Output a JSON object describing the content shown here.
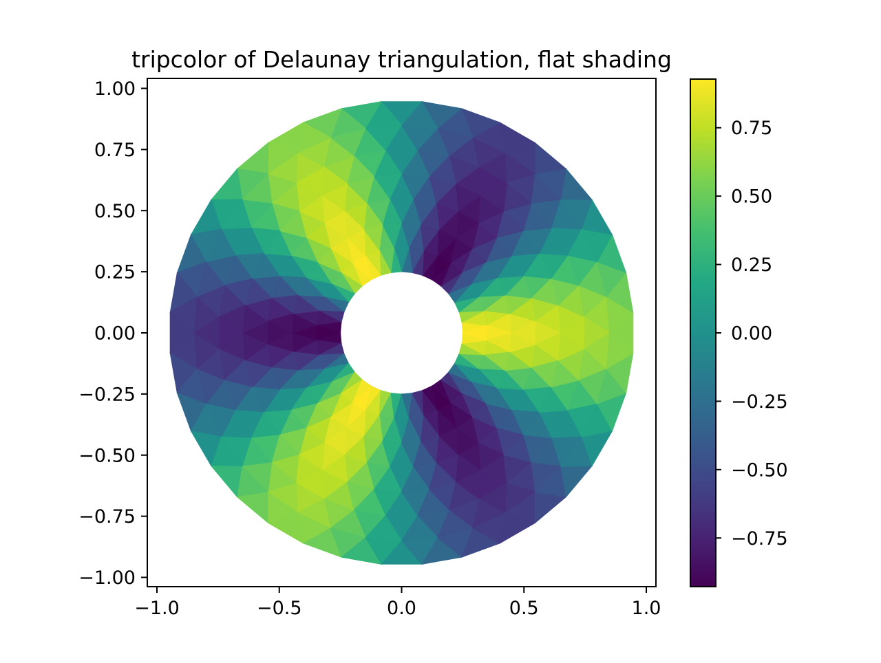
{
  "chart_data": {
    "type": "tripcolor",
    "title": "tripcolor of Delaunay triangulation, flat shading",
    "shading": "flat",
    "grid": false,
    "x_axis": {
      "tick_values": [
        -1.0,
        -0.5,
        0.0,
        0.5,
        1.0
      ],
      "tick_labels": [
        "−1.0",
        "−0.5",
        "0.0",
        "0.5",
        "1.0"
      ],
      "lim": [
        -1.04,
        1.04
      ]
    },
    "y_axis": {
      "tick_values": [
        1.0,
        0.75,
        0.5,
        0.25,
        0.0,
        -0.25,
        -0.5,
        -0.75,
        -1.0
      ],
      "tick_labels": [
        "1.00",
        "0.75",
        "0.50",
        "0.25",
        "0.00",
        "−0.25",
        "−0.50",
        "−0.75",
        "−1.00"
      ],
      "lim": [
        -1.04,
        1.04
      ]
    },
    "colorbar": {
      "position": "right",
      "colormap": "viridis",
      "tick_values": [
        0.75,
        0.5,
        0.25,
        0.0,
        -0.25,
        -0.5,
        -0.75
      ],
      "tick_labels": [
        "0.75",
        "0.50",
        "0.25",
        "0.00",
        "−0.25",
        "−0.50",
        "−0.75"
      ],
      "value_range_note": "limits autoscaled to min/max of flat-shaded face values, approx -0.928 to 0.928"
    },
    "colormap_stops": [
      "#440154",
      "#482475",
      "#414487",
      "#355f8d",
      "#2a788e",
      "#21918c",
      "#22a884",
      "#44bf70",
      "#7ad151",
      "#bddf26",
      "#fde725"
    ],
    "mesh": {
      "n_angles": 36,
      "n_radii": 8,
      "min_radius": 0.25,
      "max_radius": 0.95,
      "odd_ring_angle_offset": "pi / n_angles",
      "z_formula": "cos(r) * cos(3 * theta)",
      "face_value": "mean of the three vertex z values (flat shading)",
      "mask": "triangles whose centroid radius < min_radius (central hole)"
    }
  }
}
